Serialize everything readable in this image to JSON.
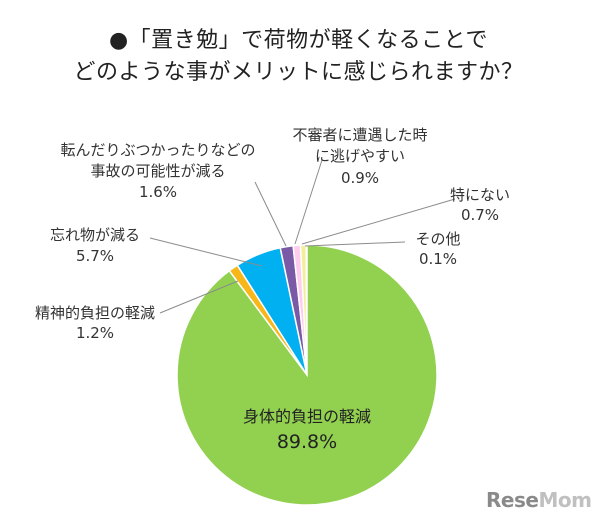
{
  "chart_data": {
    "type": "pie",
    "title_line1": "●「置き勉」で荷物が軽くなることで",
    "title_line2": "どのような事がメリットに感じられますか？",
    "slices": [
      {
        "label": "身体的負担の軽減",
        "value": 89.8,
        "display": "89.8%",
        "color": "#92d050"
      },
      {
        "label": "精神的負担の軽減",
        "value": 1.2,
        "display": "1.2%",
        "color": "#f7b718"
      },
      {
        "label": "忘れ物が減る",
        "value": 5.7,
        "display": "5.7%",
        "color": "#00b0f0"
      },
      {
        "label": "転んだりぶつかったりなどの事故の可能性が減る",
        "display_lines": [
          "転んだりぶつかったりなどの",
          "事故の可能性が減る"
        ],
        "value": 1.6,
        "display": "1.6%",
        "color": "#7a5aa6"
      },
      {
        "label": "不審者に遭遇した時に逃げやすい",
        "display_lines": [
          "不審者に遭遇した時",
          "に逃げやすい"
        ],
        "value": 0.9,
        "display": "0.9%",
        "color": "#ffccee"
      },
      {
        "label": "特にない",
        "value": 0.7,
        "display": "0.7%",
        "color": "#f2ee9a"
      },
      {
        "label": "その他",
        "value": 0.1,
        "display": "0.1%",
        "color": "#ffff00"
      }
    ]
  },
  "watermark": "ReseMom"
}
